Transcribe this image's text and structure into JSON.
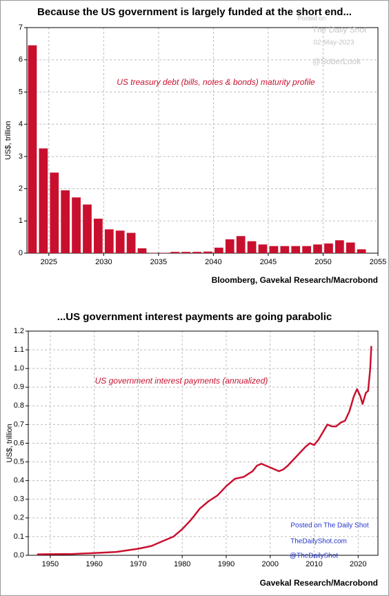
{
  "chart_data": [
    {
      "type": "bar",
      "title": "Because the US government is largely funded at the short end...",
      "annotation": "US treasury debt (bills, notes & bonds) maturity profile",
      "ylabel": "US$, trillion",
      "source": "Bloomberg, Gavekal Research/Macrobond",
      "watermark": [
        "Posted on",
        "The Daily Shot",
        "02-May-2023",
        "@SoberLook"
      ],
      "color": "#c8102e",
      "x": [
        2023,
        2024,
        2025,
        2026,
        2027,
        2028,
        2029,
        2030,
        2031,
        2032,
        2033,
        2034,
        2035,
        2036,
        2037,
        2038,
        2039,
        2040,
        2041,
        2042,
        2043,
        2044,
        2045,
        2046,
        2047,
        2048,
        2049,
        2050,
        2051,
        2052,
        2053
      ],
      "values": [
        6.45,
        3.25,
        2.5,
        1.95,
        1.73,
        1.51,
        1.07,
        0.74,
        0.7,
        0.63,
        0.15,
        0.01,
        0.01,
        0.04,
        0.04,
        0.04,
        0.05,
        0.17,
        0.43,
        0.53,
        0.37,
        0.27,
        0.22,
        0.22,
        0.22,
        0.22,
        0.27,
        0.3,
        0.4,
        0.33,
        0.12
      ],
      "xlim": [
        2023,
        2055
      ],
      "xticks": [
        2025,
        2030,
        2035,
        2040,
        2045,
        2050,
        2055
      ],
      "ylim": [
        0,
        7
      ],
      "yticks": [
        0,
        1,
        2,
        3,
        4,
        5,
        6,
        7
      ],
      "grid": true
    },
    {
      "type": "line",
      "title": "...US government interest payments are going parabolic",
      "annotation": "US government interest payments (annualized)",
      "ylabel": "US$, trillion",
      "source": "Gavekal Research/Macrobond",
      "watermark": [
        "Posted on The Daily Shot",
        "TheDailyShot.com",
        "@TheDailyShot"
      ],
      "watermark_color": "#2233cc",
      "color": "#c8102e",
      "x": [
        1947,
        1950,
        1955,
        1960,
        1965,
        1970,
        1973,
        1975,
        1978,
        1980,
        1982,
        1984,
        1986,
        1988,
        1990,
        1992,
        1994,
        1996,
        1997,
        1998,
        1999,
        2000,
        2001,
        2002,
        2003,
        2004,
        2006,
        2008,
        2009,
        2010,
        2011,
        2012,
        2013,
        2014,
        2015,
        2016,
        2017,
        2018,
        2019,
        2019.75,
        2020.5,
        2021,
        2021.75,
        2022.25,
        2022.75,
        2023
      ],
      "values": [
        0.005,
        0.006,
        0.007,
        0.012,
        0.018,
        0.035,
        0.05,
        0.07,
        0.1,
        0.14,
        0.19,
        0.25,
        0.29,
        0.32,
        0.37,
        0.41,
        0.42,
        0.45,
        0.48,
        0.49,
        0.48,
        0.47,
        0.46,
        0.45,
        0.46,
        0.48,
        0.53,
        0.58,
        0.6,
        0.59,
        0.62,
        0.66,
        0.7,
        0.69,
        0.69,
        0.71,
        0.72,
        0.77,
        0.85,
        0.89,
        0.85,
        0.81,
        0.87,
        0.88,
        1.0,
        1.12
      ],
      "xlim": [
        1945,
        2024.5
      ],
      "xticks": [
        1950,
        1960,
        1970,
        1980,
        1990,
        2000,
        2010,
        2020
      ],
      "ylim": [
        0,
        1.2
      ],
      "yticks": [
        {
          "value": 0,
          "label": "0.0"
        },
        0.1,
        0.2,
        0.3,
        0.4,
        0.5,
        0.6,
        0.7,
        0.8,
        0.9,
        {
          "value": 1,
          "label": "1.0"
        },
        1.1,
        1.2
      ],
      "grid": true
    }
  ]
}
